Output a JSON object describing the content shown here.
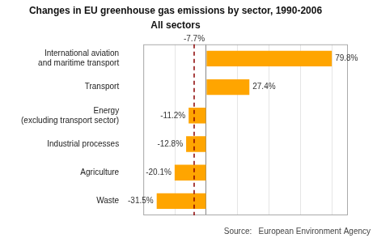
{
  "chart_data": {
    "type": "bar",
    "orientation": "horizontal",
    "title": "Changes in EU greenhouse gas emissions by sector, 1990-2006",
    "subtitle": "All sectors",
    "categories": [
      "Waste",
      "Agriculture",
      "Industrial processes",
      "Energy\n(excluding transport sector)",
      "Transport",
      "International aviation\nand maritime transport"
    ],
    "values": [
      -31.5,
      -20.1,
      -12.8,
      -11.2,
      27.4,
      79.8
    ],
    "value_labels": [
      "-31.5%",
      "-20.1%",
      "-12.8%",
      "-11.2%",
      "27.4%",
      "79.8%"
    ],
    "data_labels": true,
    "color": "#FFA500",
    "xlim": [
      -40,
      90
    ],
    "xticks": [
      -40,
      -20,
      0,
      20,
      40,
      60,
      80
    ],
    "grid": true,
    "tick_labels": "y",
    "reference_line": {
      "value": -7.7,
      "label": "-7.7%",
      "color": "#8B0000"
    },
    "source": "Source:   European Environment Agency"
  }
}
